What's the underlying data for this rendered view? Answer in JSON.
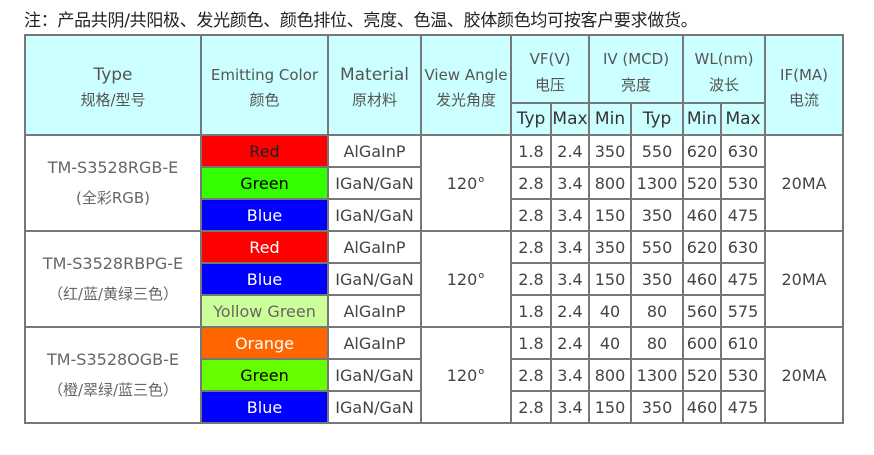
{
  "note": "注：产品共阴/共阳极、发光颜色、颜色排位、亮度、色温、胶体颜色均可按客户要求做货。",
  "header": {
    "type": {
      "en": "Type",
      "cn": "规格/型号"
    },
    "color": {
      "en": "Emitting Color",
      "cn": "颜色"
    },
    "material": {
      "en": "Material",
      "cn": "原材料"
    },
    "angle": {
      "en": "View Angle",
      "cn": "发光角度"
    },
    "vf": {
      "en": "VF(V)",
      "cn": "电压",
      "sub": [
        "Typ",
        "Max"
      ]
    },
    "iv": {
      "en": "IV (MCD)",
      "cn": "亮度",
      "sub": [
        "Min",
        "Typ"
      ]
    },
    "wl": {
      "en": "WL(nm)",
      "cn": "波长",
      "sub": [
        "Min",
        "Max"
      ]
    },
    "if": {
      "en": "IF(MA)",
      "cn": "电流"
    }
  },
  "groups": [
    {
      "model": "TM-S3528RGB-E",
      "desc": "(全彩RGB)",
      "angle": "120°",
      "if": "20MA",
      "rows": [
        {
          "color": "Red",
          "bg": "#ff0000",
          "fg": "#222222",
          "material": "AlGaInP",
          "vf": [
            "1.8",
            "2.4"
          ],
          "iv": [
            "350",
            "550"
          ],
          "wl": [
            "620",
            "630"
          ]
        },
        {
          "color": "Green",
          "bg": "#33ff00",
          "fg": "#000000",
          "material": "IGaN/GaN",
          "vf": [
            "2.8",
            "3.4"
          ],
          "iv": [
            "800",
            "1300"
          ],
          "wl": [
            "520",
            "530"
          ]
        },
        {
          "color": "Blue",
          "bg": "#0000ff",
          "fg": "#ffffff",
          "material": "IGaN/GaN",
          "vf": [
            "2.8",
            "3.4"
          ],
          "iv": [
            "150",
            "350"
          ],
          "wl": [
            "460",
            "475"
          ]
        }
      ]
    },
    {
      "model": "TM-S3528RBPG-E",
      "desc": "（红/蓝/黄绿三色）",
      "angle": "120°",
      "if": "20MA",
      "rows": [
        {
          "color": "Red",
          "bg": "#ff0000",
          "fg": "#ffffff",
          "material": "AlGaInP",
          "vf": [
            "2.8",
            "3.4"
          ],
          "iv": [
            "350",
            "550"
          ],
          "wl": [
            "620",
            "630"
          ]
        },
        {
          "color": "Blue",
          "bg": "#0000ff",
          "fg": "#ffffff",
          "material": "IGaN/GaN",
          "vf": [
            "2.8",
            "3.4"
          ],
          "iv": [
            "150",
            "350"
          ],
          "wl": [
            "460",
            "475"
          ]
        },
        {
          "color": "Yollow Green",
          "bg": "#ccff99",
          "fg": "#666666",
          "material": "AlGaInP",
          "vf": [
            "1.8",
            "2.4"
          ],
          "iv": [
            "40",
            "80"
          ],
          "wl": [
            "560",
            "575"
          ]
        }
      ]
    },
    {
      "model": "TM-S3528OGB-E",
      "desc": "（橙/翠绿/蓝三色）",
      "angle": "120°",
      "if": "20MA",
      "rows": [
        {
          "color": "Orange",
          "bg": "#ff6600",
          "fg": "#ffffff",
          "material": "AlGaInP",
          "vf": [
            "1.8",
            "2.4"
          ],
          "iv": [
            "40",
            "80"
          ],
          "wl": [
            "600",
            "610"
          ]
        },
        {
          "color": "Green",
          "bg": "#66ff00",
          "fg": "#000000",
          "material": "IGaN/GaN",
          "vf": [
            "2.8",
            "3.4"
          ],
          "iv": [
            "800",
            "1300"
          ],
          "wl": [
            "520",
            "530"
          ]
        },
        {
          "color": "Blue",
          "bg": "#0000ff",
          "fg": "#ffffff",
          "material": "IGaN/GaN",
          "vf": [
            "2.8",
            "3.4"
          ],
          "iv": [
            "150",
            "350"
          ],
          "wl": [
            "460",
            "475"
          ]
        }
      ]
    }
  ]
}
